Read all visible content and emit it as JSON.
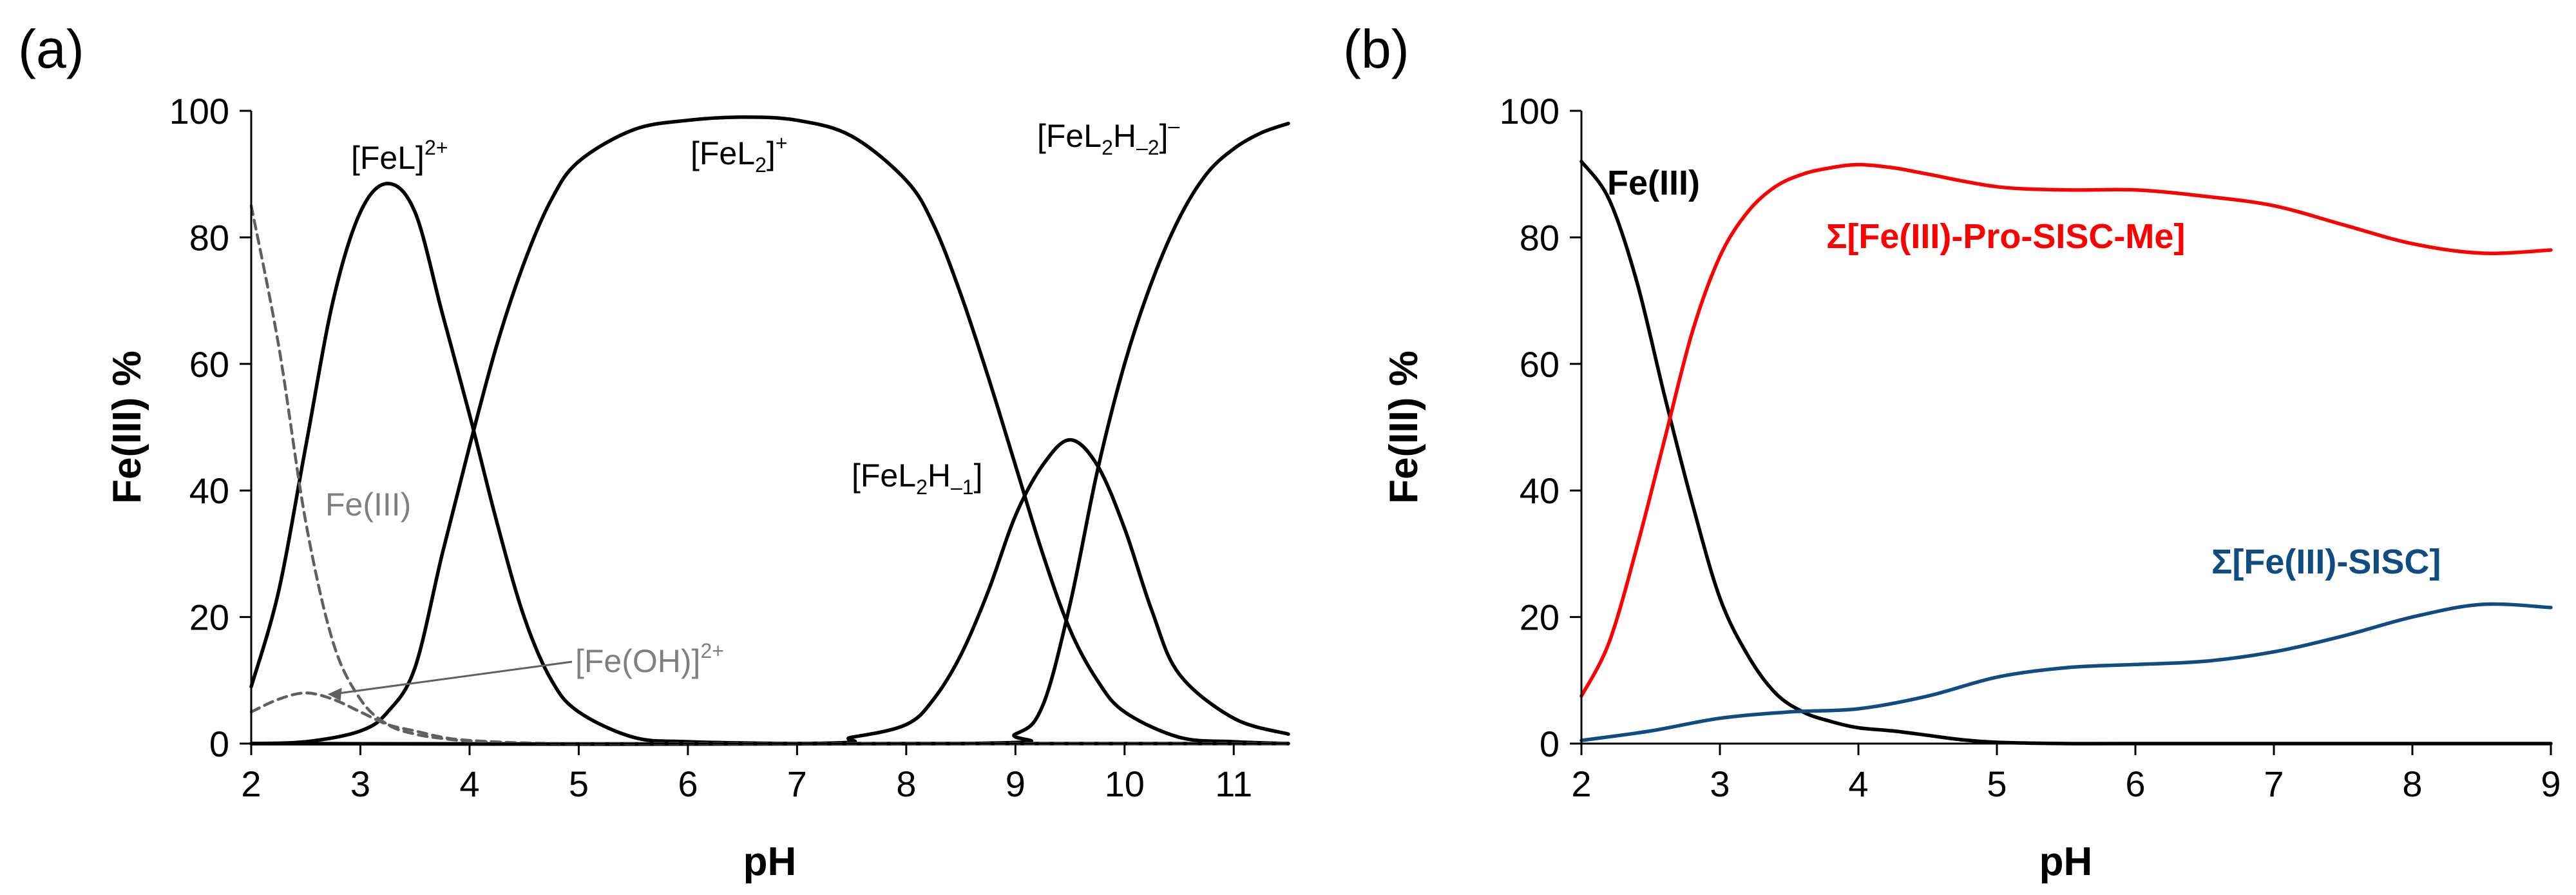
{
  "chart_data": [
    {
      "panel": "(a)",
      "type": "line",
      "xlabel": "pH",
      "ylabel": "Fe(III) %",
      "xlim": [
        2,
        11.5
      ],
      "ylim": [
        0,
        100
      ],
      "xticks": [
        "2",
        "3",
        "4",
        "5",
        "6",
        "7",
        "8",
        "9",
        "10",
        "11"
      ],
      "yticks": [
        "0",
        "20",
        "40",
        "60",
        "80",
        "100"
      ],
      "grid": false,
      "series": [
        {
          "name": "[FeL]2+",
          "label_parts": [
            "[FeL]",
            "2+",
            ""
          ],
          "style": "solid",
          "color": "#000000",
          "x": [
            2,
            2.25,
            2.5,
            2.75,
            3,
            3.25,
            3.5,
            3.75,
            4,
            4.25,
            4.5,
            4.75,
            5,
            5.5,
            6,
            7,
            8,
            11.5
          ],
          "y": [
            9,
            24,
            47,
            70,
            84,
            88.5,
            84,
            68,
            52,
            35,
            20,
            10,
            5,
            1,
            0.3,
            0,
            0,
            0
          ]
        },
        {
          "name": "[FeL2]+",
          "label_parts": [
            "[FeL",
            "2",
            "]",
            "+",
            ""
          ],
          "style": "solid",
          "color": "#000000",
          "x": [
            2,
            2.5,
            3,
            3.25,
            3.5,
            3.75,
            4,
            4.25,
            4.5,
            4.75,
            5,
            5.5,
            6,
            6.5,
            7,
            7.5,
            8,
            8.25,
            8.5,
            8.75,
            9,
            9.25,
            9.5,
            9.75,
            10,
            10.5,
            11,
            11.5
          ],
          "y": [
            0,
            0.3,
            2,
            5,
            12,
            30,
            47,
            63,
            76,
            86,
            92,
            97,
            98.5,
            99,
            98.5,
            96,
            89,
            82,
            71,
            58,
            44,
            30,
            18,
            10,
            5,
            1,
            0.3,
            0
          ]
        },
        {
          "name": "[FeL2H-1]",
          "label_parts": [
            "[FeL",
            "2",
            "H",
            "–1",
            "]"
          ],
          "style": "solid",
          "color": "#000000",
          "x": [
            2,
            7,
            7.5,
            8,
            8.25,
            8.5,
            8.75,
            9,
            9.25,
            9.5,
            9.75,
            10,
            10.25,
            10.5,
            11,
            11.5
          ],
          "y": [
            0,
            0,
            1,
            3,
            7,
            14,
            24,
            36,
            44,
            48,
            44,
            34,
            21,
            11,
            4,
            1.5
          ]
        },
        {
          "name": "[FeL2H-2]-",
          "label_parts": [
            "[FeL",
            "2",
            "H",
            "–2",
            "]",
            "–"
          ],
          "style": "solid",
          "color": "#000000",
          "x": [
            2,
            8.5,
            9,
            9.25,
            9.5,
            9.75,
            10,
            10.25,
            10.5,
            10.75,
            11,
            11.25,
            11.5
          ],
          "y": [
            0,
            0,
            1.5,
            6,
            22,
            43,
            60,
            73,
            83,
            90,
            94,
            96.5,
            98
          ]
        },
        {
          "name": "Fe(III)",
          "style": "dashed",
          "color": "#606060",
          "x": [
            2,
            2.25,
            2.5,
            2.75,
            3,
            3.25,
            3.5,
            3.75,
            4,
            4.5,
            5,
            6,
            11.5
          ],
          "y": [
            85,
            63,
            35,
            16,
            7,
            3,
            1.5,
            0.8,
            0.4,
            0.1,
            0,
            0,
            0
          ]
        },
        {
          "name": "[Fe(OH)]2+",
          "style": "dashed",
          "color": "#606060",
          "x": [
            2,
            2.25,
            2.5,
            2.75,
            3,
            3.25,
            3.5,
            3.75,
            4,
            4.5,
            5,
            6,
            11.5
          ],
          "y": [
            5,
            7,
            8,
            7,
            5,
            3,
            2,
            1,
            0.5,
            0.1,
            0,
            0,
            0
          ]
        }
      ],
      "annotations": [
        {
          "text": "Fe(III)",
          "color": "#808080"
        },
        {
          "text": "[Fe(OH)]2+",
          "label_parts": [
            "[Fe(OH)]",
            "2+"
          ],
          "color": "#808080",
          "arrow_to_x": 2.7,
          "arrow_to_y": 7.8
        }
      ]
    },
    {
      "panel": "(b)",
      "type": "line",
      "xlabel": "pH",
      "ylabel": "Fe(III) %",
      "xlim": [
        2,
        9
      ],
      "ylim": [
        0,
        100
      ],
      "xticks": [
        "2",
        "3",
        "4",
        "5",
        "6",
        "7",
        "8",
        "9"
      ],
      "yticks": [
        "0",
        "20",
        "40",
        "60",
        "80",
        "100"
      ],
      "grid": false,
      "series": [
        {
          "name": "Fe(III)",
          "style": "solid",
          "color": "#000000",
          "x": [
            2,
            2.2,
            2.4,
            2.6,
            2.8,
            3,
            3.2,
            3.4,
            3.6,
            3.8,
            4,
            4.25,
            4.5,
            4.75,
            5,
            5.5,
            6,
            9
          ],
          "y": [
            92,
            86,
            73,
            55,
            38,
            23,
            14,
            8,
            5,
            3.5,
            2.5,
            2,
            1.3,
            0.6,
            0.2,
            0,
            0,
            0
          ]
        },
        {
          "name": "Σ[Fe(III)-Pro-SISC-Me]",
          "style": "solid",
          "color": "#ff0000",
          "x": [
            2,
            2.2,
            2.4,
            2.6,
            2.8,
            3,
            3.2,
            3.4,
            3.6,
            3.8,
            4,
            4.25,
            4.5,
            5,
            5.5,
            6,
            6.5,
            7,
            7.5,
            8,
            8.5,
            9
          ],
          "y": [
            7.5,
            16,
            31,
            48,
            65,
            77,
            84,
            88,
            90,
            91,
            91.5,
            91,
            90,
            88,
            87.5,
            87.5,
            86.5,
            85,
            82,
            79,
            77.5,
            78
          ]
        },
        {
          "name": "Σ[Fe(III)-SISC]",
          "style": "solid",
          "color": "#0f4c81",
          "x": [
            2,
            2.5,
            3,
            3.5,
            4,
            4.5,
            5,
            5.5,
            6,
            6.5,
            7,
            7.5,
            8,
            8.5,
            9
          ],
          "y": [
            0.5,
            2,
            4,
            5,
            5.5,
            7.5,
            10.5,
            12,
            12.5,
            13,
            14.5,
            17,
            20,
            22,
            21.5
          ]
        }
      ]
    }
  ]
}
